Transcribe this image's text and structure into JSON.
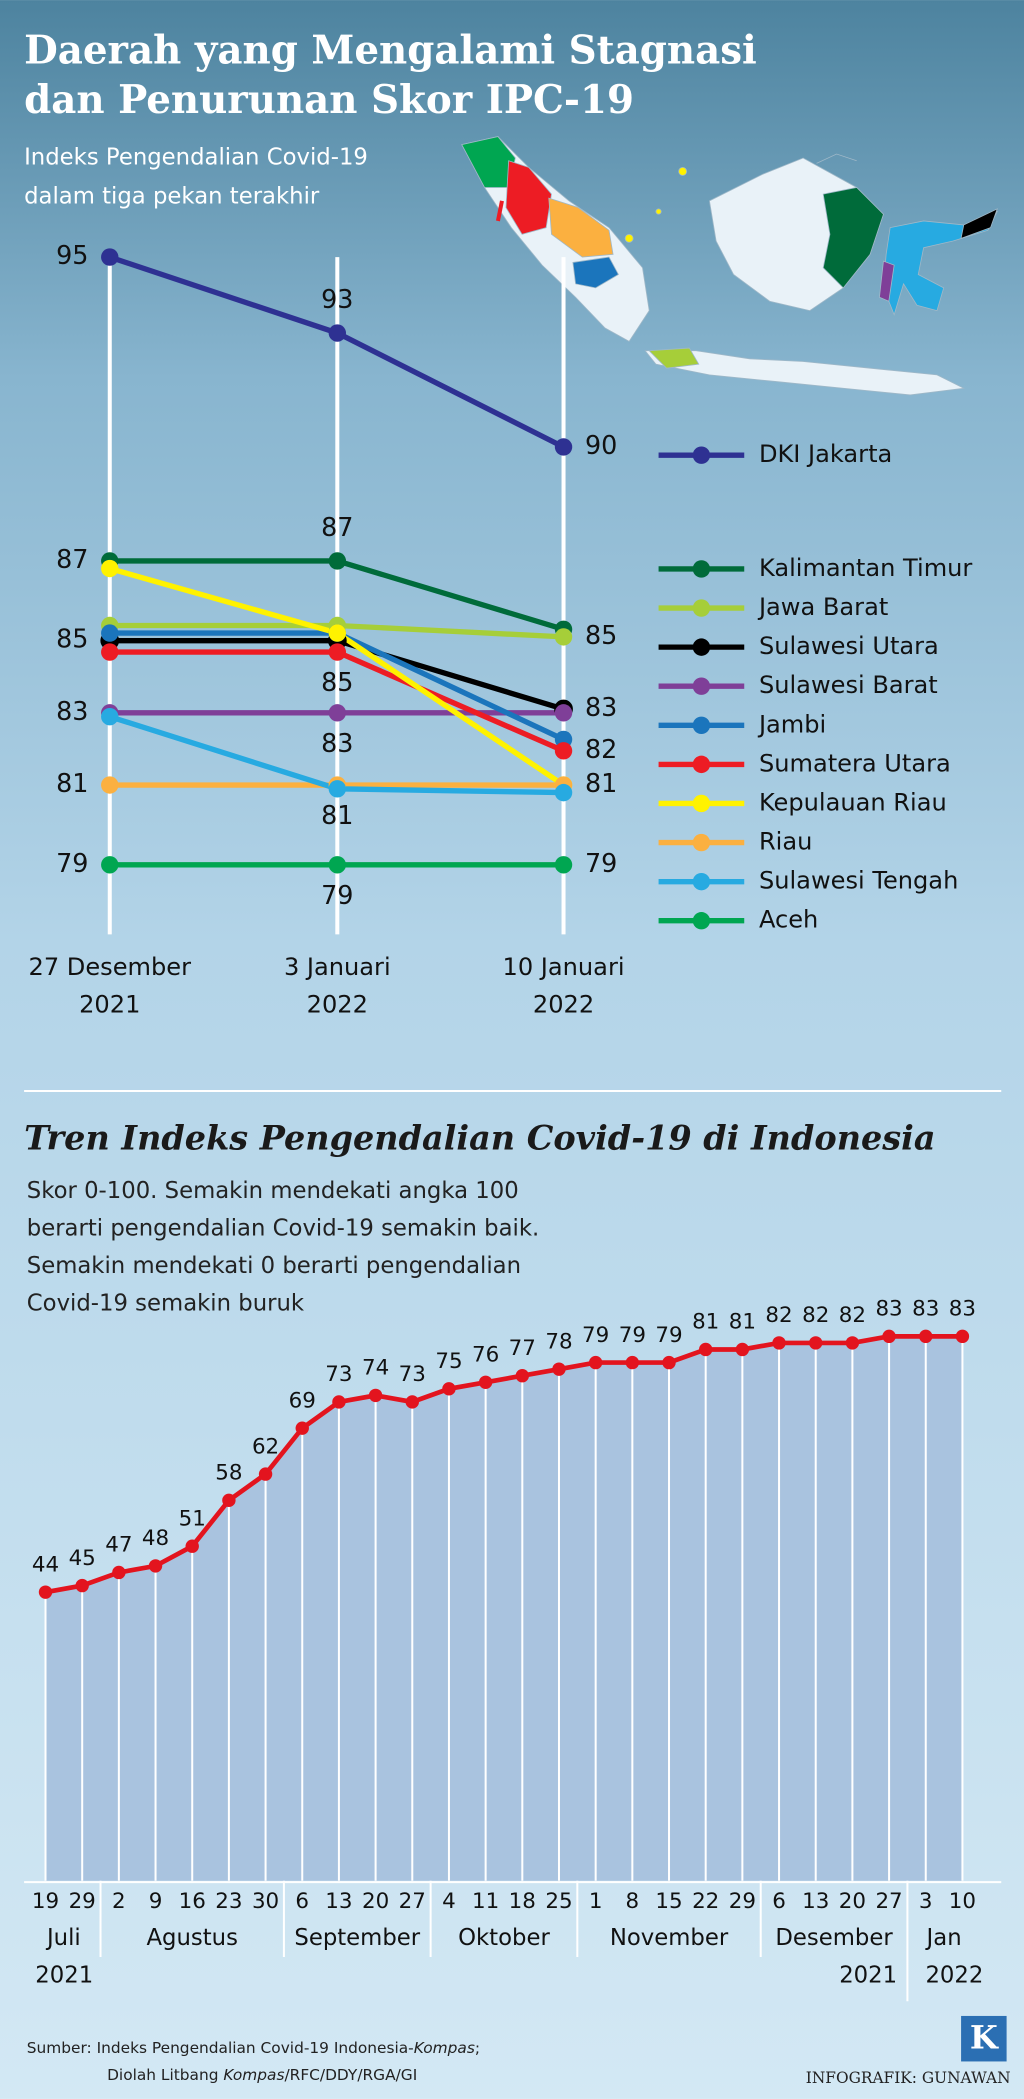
{
  "chart_data": [
    {
      "type": "line",
      "title": [
        "Daerah yang Mengalami Stagnasi",
        "dan Penurunan Skor IPC-19"
      ],
      "subtitle": [
        "Indeks Pengendalian Covid-19",
        "dalam tiga pekan terakhir"
      ],
      "categories": [
        [
          "27 Desember",
          "2021"
        ],
        [
          "3 Januari",
          "2022"
        ],
        [
          "10 Januari",
          "2022"
        ]
      ],
      "ylim": [
        79,
        95
      ],
      "series": [
        {
          "name": "DKI Jakarta",
          "color": "#2e3192",
          "values": [
            95,
            93,
            90
          ],
          "value_labels": [
            "95",
            "93",
            "90"
          ]
        },
        {
          "name": "Kalimantan Timur",
          "color": "#006b3a",
          "values": [
            87,
            87,
            85.2
          ],
          "value_labels": [
            "87",
            "87",
            null
          ]
        },
        {
          "name": "Jawa Barat",
          "color": "#a6ce39",
          "values": [
            85.3,
            85.3,
            85
          ],
          "value_labels": [
            null,
            null,
            "85"
          ]
        },
        {
          "name": "Sulawesi Utara",
          "color": "#000000",
          "values": [
            84.9,
            84.9,
            83.1
          ],
          "value_labels": [
            "85",
            null,
            "83"
          ]
        },
        {
          "name": "Sulawesi Barat",
          "color": "#7f3f98",
          "values": [
            83,
            83,
            83
          ],
          "value_labels": [
            "83",
            "83",
            null
          ]
        },
        {
          "name": "Jambi",
          "color": "#1b75bc",
          "values": [
            85.1,
            85.1,
            82.3
          ]
        },
        {
          "name": "Sumatera Utara",
          "color": "#ed1c24",
          "values": [
            84.6,
            84.6,
            82
          ],
          "value_labels": [
            null,
            "85",
            "82"
          ]
        },
        {
          "name": "Kepulauan Riau",
          "color": "#fff200",
          "values": [
            86.8,
            85.1,
            81.1
          ],
          "value_labels": [
            null,
            null,
            "81"
          ]
        },
        {
          "name": "Riau",
          "color": "#fbb040",
          "values": [
            81.1,
            81.1,
            81.1
          ],
          "value_labels": [
            "81",
            "81",
            null
          ]
        },
        {
          "name": "Sulawesi Tengah",
          "color": "#27aae1",
          "values": [
            82.9,
            81,
            80.9
          ]
        },
        {
          "name": "Aceh",
          "color": "#00a651",
          "values": [
            79,
            79,
            79
          ],
          "value_labels": [
            "79",
            "79",
            "79"
          ]
        }
      ]
    },
    {
      "type": "area",
      "title": "Tren Indeks Pengendalian Covid-19 di Indonesia",
      "description": [
        "Skor 0-100. Semakin mendekati angka 100",
        "berarti pengendalian Covid-19 semakin baik.",
        "Semakin mendekati 0 berarti pengendalian",
        "Covid-19 semakin buruk"
      ],
      "months": [
        {
          "label": "Juli",
          "days": [
            "19",
            "29"
          ]
        },
        {
          "label": "Agustus",
          "days": [
            "2",
            "9",
            "16",
            "23",
            "30"
          ]
        },
        {
          "label": "September",
          "days": [
            "6",
            "13",
            "20",
            "27"
          ]
        },
        {
          "label": "Oktober",
          "days": [
            "4",
            "11",
            "18",
            "25"
          ]
        },
        {
          "label": "November",
          "days": [
            "1",
            "8",
            "15",
            "22",
            "29"
          ]
        },
        {
          "label": "Desember",
          "days": [
            "6",
            "13",
            "20",
            "27"
          ]
        },
        {
          "label": "Jan",
          "days": [
            "3",
            "10"
          ]
        }
      ],
      "years": [
        "2021",
        "2021",
        "2022"
      ],
      "values": [
        44,
        45,
        47,
        48,
        51,
        58,
        62,
        69,
        73,
        74,
        73,
        75,
        76,
        77,
        78,
        79,
        79,
        79,
        81,
        81,
        82,
        82,
        82,
        83,
        83,
        83
      ],
      "ylim": [
        0,
        100
      ],
      "line_color": "#e3141e",
      "fill_color": "#a9c3df"
    }
  ],
  "source": [
    [
      "Sumber: Indeks Pengendalian Covid-19 Indonesia-",
      "Kompas",
      ";"
    ],
    [
      "Diolah Litbang ",
      "Kompas",
      "/RFC/DDY/RGA/GI"
    ]
  ],
  "credit": "INFOGRAFIK: GUNAWAN",
  "logo": "K"
}
